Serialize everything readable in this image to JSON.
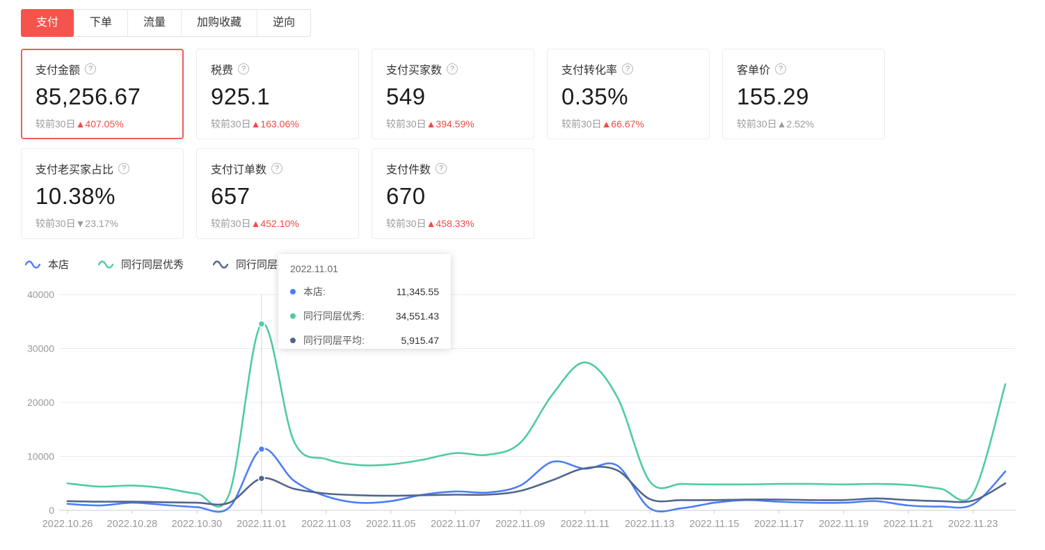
{
  "tabs": {
    "items": [
      {
        "label": "支付",
        "active": true
      },
      {
        "label": "下单",
        "active": false
      },
      {
        "label": "流量",
        "active": false
      },
      {
        "label": "加购收藏",
        "active": false
      },
      {
        "label": "逆向",
        "active": false
      }
    ]
  },
  "cards": [
    {
      "title": "支付金额",
      "value": "85,256.67",
      "compare_label": "较前30日",
      "delta": "▲407.05%",
      "delta_state": "up-red",
      "selected": true
    },
    {
      "title": "税费",
      "value": "925.1",
      "compare_label": "较前30日",
      "delta": "▲163.06%",
      "delta_state": "up-red",
      "selected": false
    },
    {
      "title": "支付买家数",
      "value": "549",
      "compare_label": "较前30日",
      "delta": "▲394.59%",
      "delta_state": "up-red",
      "selected": false
    },
    {
      "title": "支付转化率",
      "value": "0.35%",
      "compare_label": "较前30日",
      "delta": "▲66.67%",
      "delta_state": "up-red",
      "selected": false
    },
    {
      "title": "客单价",
      "value": "155.29",
      "compare_label": "较前30日",
      "delta": "▲2.52%",
      "delta_state": "up-gray",
      "selected": false
    },
    {
      "title": "支付老买家占比",
      "value": "10.38%",
      "compare_label": "较前30日",
      "delta": "▼23.17%",
      "delta_state": "down-gray",
      "selected": false
    },
    {
      "title": "支付订单数",
      "value": "657",
      "compare_label": "较前30日",
      "delta": "▲452.10%",
      "delta_state": "up-red",
      "selected": false
    },
    {
      "title": "支付件数",
      "value": "670",
      "compare_label": "较前30日",
      "delta": "▲458.33%",
      "delta_state": "up-red",
      "selected": false
    }
  ],
  "legend": {
    "items": [
      {
        "label": "本店"
      },
      {
        "label": "同行同层优秀"
      },
      {
        "label": "同行同层平均"
      }
    ]
  },
  "tooltip": {
    "date": "2022.11.01",
    "rows": [
      {
        "label": "本店:",
        "value": "11,345.55"
      },
      {
        "label": "同行同层优秀:",
        "value": "34,551.43"
      },
      {
        "label": "同行同层平均:",
        "value": "5,915.47"
      }
    ]
  },
  "colors": {
    "accent_red": "#f5544c",
    "delta_red": "#f04b45",
    "text_gray": "#9b9b9b",
    "axis_text": "#999999",
    "grid_line": "#e9e9e9",
    "axis_line": "#cccccc",
    "hover_line": "#d4d4d4"
  },
  "chart_data": {
    "type": "line",
    "title": "",
    "xlabel": "",
    "ylabel": "",
    "x": [
      "2022.10.26",
      "2022.10.27",
      "2022.10.28",
      "2022.10.29",
      "2022.10.30",
      "2022.10.31",
      "2022.11.01",
      "2022.11.02",
      "2022.11.03",
      "2022.11.04",
      "2022.11.05",
      "2022.11.06",
      "2022.11.07",
      "2022.11.08",
      "2022.11.09",
      "2022.11.10",
      "2022.11.11",
      "2022.11.12",
      "2022.11.13",
      "2022.11.14",
      "2022.11.15",
      "2022.11.16",
      "2022.11.17",
      "2022.11.18",
      "2022.11.19",
      "2022.11.20",
      "2022.11.21",
      "2022.11.22",
      "2022.11.23",
      "2022.11.24"
    ],
    "x_tick_every": 2,
    "ylim": [
      0,
      40000
    ],
    "yticks": [
      0,
      10000,
      20000,
      30000,
      40000
    ],
    "grid": true,
    "legend_position": "top-left",
    "series": [
      {
        "name": "本店",
        "color": "#4d7ef5",
        "values": [
          1200,
          900,
          1400,
          1000,
          600,
          500,
          11345.55,
          5500,
          2600,
          1400,
          1700,
          2900,
          3500,
          3300,
          4600,
          9000,
          7700,
          8300,
          400,
          400,
          1400,
          1900,
          1600,
          1400,
          1400,
          1700,
          900,
          700,
          1100,
          7200
        ]
      },
      {
        "name": "同行同层优秀",
        "color": "#4ecba4",
        "values": [
          5000,
          4400,
          4600,
          4100,
          3100,
          3000,
          34551.43,
          12800,
          9500,
          8400,
          8500,
          9400,
          10600,
          10300,
          12500,
          21500,
          27400,
          21000,
          5400,
          4900,
          4800,
          4800,
          4900,
          4900,
          4800,
          4900,
          4700,
          4000,
          3100,
          23400
        ]
      },
      {
        "name": "同行同层平均",
        "color": "#52658c",
        "values": [
          1700,
          1600,
          1600,
          1500,
          1400,
          1400,
          5915.47,
          4000,
          3100,
          2800,
          2700,
          2800,
          2900,
          2900,
          3600,
          5600,
          7800,
          7400,
          2100,
          1900,
          1900,
          2000,
          2000,
          1900,
          1900,
          2200,
          1900,
          1700,
          1800,
          5000
        ]
      }
    ],
    "hover": {
      "index": 6,
      "date": "2022.11.01"
    }
  }
}
